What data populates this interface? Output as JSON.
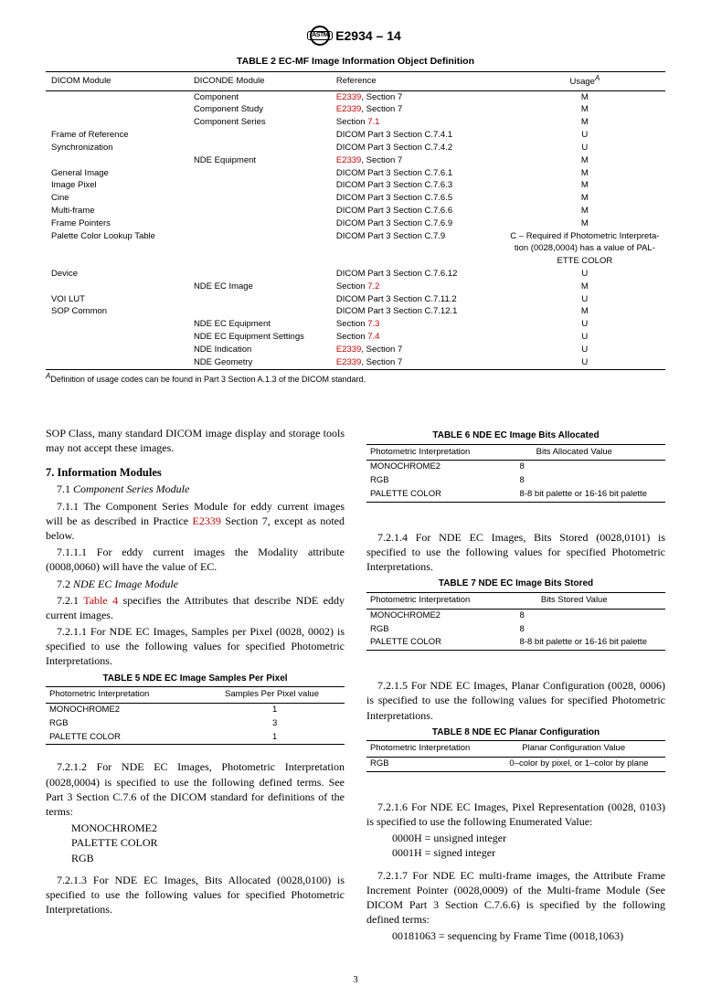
{
  "header": {
    "designation": "E2934 – 14"
  },
  "table2": {
    "title": "TABLE 2 EC-MF Image Information Object Definition",
    "columns": [
      "DICOM Module",
      "DICONDE Module",
      "Reference",
      "Usage"
    ],
    "usage_superscript": "A",
    "rows": [
      {
        "c1": "",
        "c2": "Component",
        "c3": {
          "link": "E2339",
          "rest": ", Section 7"
        },
        "c4": "M"
      },
      {
        "c1": "",
        "c2": "Component Study",
        "c3": {
          "link": "E2339",
          "rest": ", Section 7"
        },
        "c4": "M"
      },
      {
        "c1": "",
        "c2": "Component Series",
        "c3": {
          "rest": "Section ",
          "link": "7.1"
        },
        "c4": "M"
      },
      {
        "c1": "Frame of Reference",
        "c2": "",
        "c3": {
          "plain": "DICOM Part 3 Section C.7.4.1"
        },
        "c4": "U"
      },
      {
        "c1": "Synchronization",
        "c2": "",
        "c3": {
          "plain": "DICOM Part 3 Section C.7.4.2"
        },
        "c4": "U"
      },
      {
        "c1": "",
        "c2": "NDE Equipment",
        "c3": {
          "link": "E2339",
          "rest": ", Section 7"
        },
        "c4": "M"
      },
      {
        "c1": "General Image",
        "c2": "",
        "c3": {
          "plain": "DICOM Part 3 Section C.7.6.1"
        },
        "c4": "M"
      },
      {
        "c1": "Image Pixel",
        "c2": "",
        "c3": {
          "plain": "DICOM Part 3 Section C.7.6.3"
        },
        "c4": "M"
      },
      {
        "c1": "Cine",
        "c2": "",
        "c3": {
          "plain": "DICOM Part 3 Section C.7.6.5"
        },
        "c4": "M"
      },
      {
        "c1": "Multi-frame",
        "c2": "",
        "c3": {
          "plain": "DICOM Part 3 Section C.7.6.6"
        },
        "c4": "M"
      },
      {
        "c1": "Frame Pointers",
        "c2": "",
        "c3": {
          "plain": "DICOM Part 3 Section C.7.6.9"
        },
        "c4": "M"
      },
      {
        "c1": "Palette Color Lookup Table",
        "c2": "",
        "c3": {
          "plain": "DICOM Part 3 Section C.7.9"
        },
        "c4": "C – Required if Photometric Interpreta-"
      },
      {
        "c1": "",
        "c2": "",
        "c3": {
          "plain": ""
        },
        "c4": "tion (0028,0004) has a value of PAL-"
      },
      {
        "c1": "",
        "c2": "",
        "c3": {
          "plain": ""
        },
        "c4": "ETTE COLOR"
      },
      {
        "c1": "Device",
        "c2": "",
        "c3": {
          "plain": "DICOM Part 3 Section C.7.6.12"
        },
        "c4": "U"
      },
      {
        "c1": "",
        "c2": "NDE EC Image",
        "c3": {
          "rest": "Section ",
          "link": "7.2"
        },
        "c4": "M"
      },
      {
        "c1": "VOI LUT",
        "c2": "",
        "c3": {
          "plain": "DICOM Part 3 Section C.7.11.2"
        },
        "c4": "U"
      },
      {
        "c1": "SOP Common",
        "c2": "",
        "c3": {
          "plain": "DICOM Part 3 Section C.7.12.1"
        },
        "c4": "M"
      },
      {
        "c1": "",
        "c2": "NDE EC Equipment",
        "c3": {
          "rest": "Section ",
          "link": "7.3"
        },
        "c4": "U"
      },
      {
        "c1": "",
        "c2": "NDE EC Equipment Settings",
        "c3": {
          "rest": "Section ",
          "link": "7.4"
        },
        "c4": "U"
      },
      {
        "c1": "",
        "c2": "NDE Indication",
        "c3": {
          "link": "E2339",
          "rest": ", Section 7"
        },
        "c4": "U"
      },
      {
        "c1": "",
        "c2": "NDE Geometry",
        "c3": {
          "link": "E2339",
          "rest": ", Section 7"
        },
        "c4": "U"
      }
    ],
    "footnote_label": "A",
    "footnote": "Definition of usage codes can be found in Part 3 Section A.1.3 of the DICOM standard."
  },
  "left_col": {
    "p1": "SOP Class, many standard DICOM image display and storage tools may not accept these images.",
    "sec7": "7. Information Modules",
    "sec71": "7.1 Component Series Module",
    "p711a": "7.1.1 The Component Series Module for eddy current images will be as described in Practice ",
    "p711link": "E2339",
    "p711b": " Section 7, except as noted below.",
    "p7111": "7.1.1.1 For eddy current images the Modality attribute (0008,0060) will have the value of EC.",
    "sec72": "7.2 NDE EC Image Module",
    "p721a": "7.2.1 ",
    "p721link": "Table 4",
    "p721b": " specifies the Attributes that describe NDE eddy current images.",
    "p7211": "7.2.1.1 For NDE EC Images, Samples per Pixel (0028, 0002) is specified to use the following values for specified Photometric Interpretations.",
    "t5": {
      "title": "TABLE 5 NDE EC Image Samples Per Pixel",
      "h1": "Photometric Interpretation",
      "h2": "Samples Per Pixel value",
      "rows": [
        [
          "MONOCHROME2",
          "1"
        ],
        [
          "RGB",
          "3"
        ],
        [
          "PALETTE COLOR",
          "1"
        ]
      ]
    },
    "p7212": "7.2.1.2 For NDE EC Images, Photometric Interpretation (0028,0004) is specified to use the following defined terms. See Part 3 Section C.7.6 of the DICOM standard for definitions of the terms:",
    "terms": [
      "MONOCHROME2",
      "PALETTE COLOR",
      "RGB"
    ],
    "p7213": "7.2.1.3 For NDE EC Images, Bits Allocated (0028,0100) is specified to use the following values for specified Photometric Interpretations."
  },
  "right_col": {
    "t6": {
      "title": "TABLE 6 NDE EC Image Bits Allocated",
      "h1": "Photometric Interpretation",
      "h2": "Bits Allocated Value",
      "rows": [
        [
          "MONOCHROME2",
          "8"
        ],
        [
          "RGB",
          "8"
        ],
        [
          "PALETTE COLOR",
          "8-8 bit palette or 16-16 bit palette"
        ]
      ]
    },
    "p7214": "7.2.1.4 For NDE EC Images, Bits Stored (0028,0101) is specified to use the following values for specified Photometric Interpretations.",
    "t7": {
      "title": "TABLE 7 NDE EC Image Bits Stored",
      "h1": "Photometric Interpretation",
      "h2": "Bits Stored Value",
      "rows": [
        [
          "MONOCHROME2",
          "8"
        ],
        [
          "RGB",
          "8"
        ],
        [
          "PALETTE COLOR",
          "8-8 bit palette or 16-16 bit palette"
        ]
      ]
    },
    "p7215": "7.2.1.5 For NDE EC Images, Planar Configuration (0028, 0006) is specified to use the following values for specified Photometric Interpretations.",
    "t8": {
      "title": "TABLE 8 NDE EC Planar Configuration",
      "h1": "Photometric Interpretation",
      "h2": "Planar Configuration Value",
      "rows": [
        [
          "RGB",
          "0–color by pixel, or 1–color by plane"
        ]
      ]
    },
    "p7216": "7.2.1.6 For NDE EC Images, Pixel Representation (0028, 0103) is specified to use the following Enumerated Value:",
    "enum1": "0000H = unsigned integer",
    "enum2": "0001H = signed integer",
    "p7217": "7.2.1.7 For NDE EC multi-frame images, the Attribute Frame Increment Pointer (0028,0009) of the Multi-frame Module (See DICOM Part 3 Section C.7.6.6) is specified by the following defined terms:",
    "enum3": "00181063 = sequencing by Frame Time (0018,1063)"
  },
  "pagenum": "3"
}
